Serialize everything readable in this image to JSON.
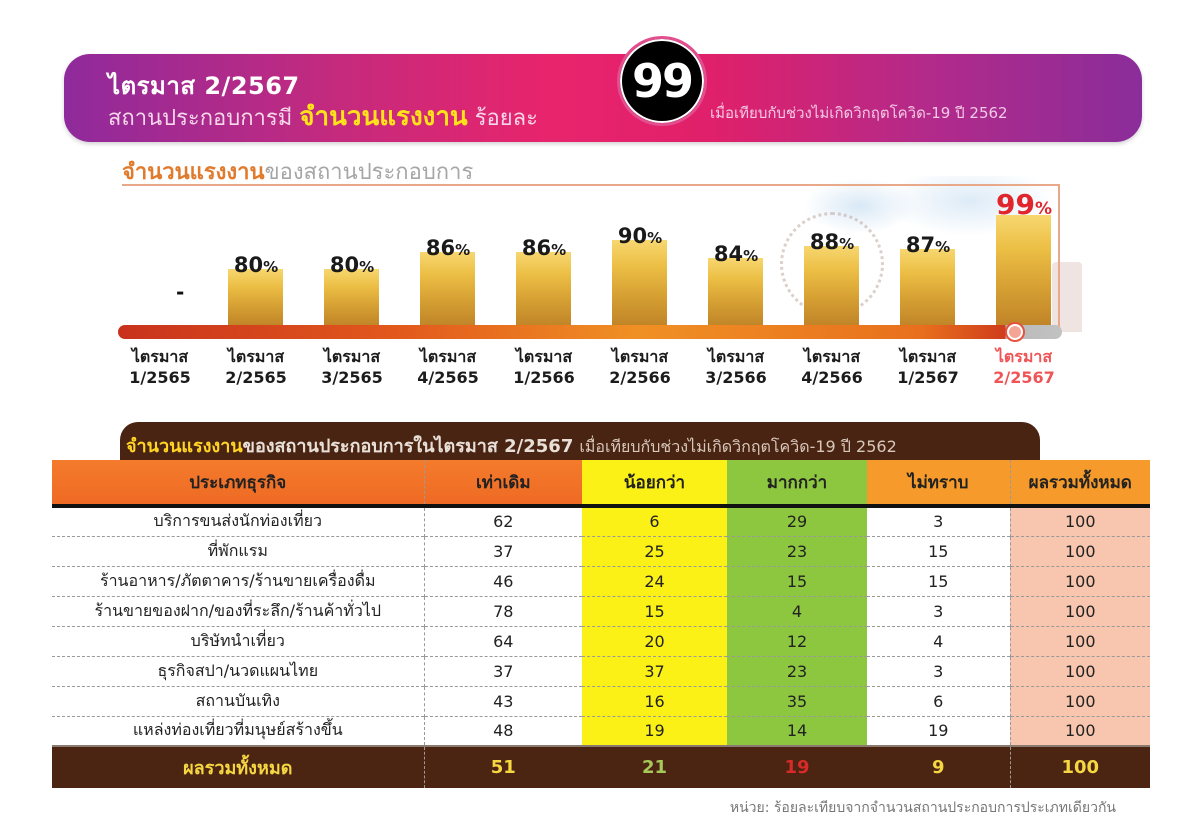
{
  "banner": {
    "line1": "ไตรมาส 2/2567",
    "line2_prefix": "สถานประกอบการมี ",
    "line2_highlight": "จำนวนแรงงาน",
    "line2_suffix": " ร้อยละ",
    "badge_value": "99",
    "note": "เมื่อเทียบกับช่วงไม่เกิดวิกฤตโควิด-19 ปี 2562"
  },
  "chart_section": {
    "title_highlight": "จำนวนแรงงาน",
    "title_rest": "ของสถานประกอบการ"
  },
  "chart_data": {
    "type": "bar",
    "title": "จำนวนแรงงานของสถานประกอบการ",
    "xlabel": "",
    "ylabel": "",
    "unit": "%",
    "categories": [
      "ไตรมาส 1/2565",
      "ไตรมาส 2/2565",
      "ไตรมาส 3/2565",
      "ไตรมาส 4/2565",
      "ไตรมาส 1/2566",
      "ไตรมาส 2/2566",
      "ไตรมาส 3/2566",
      "ไตรมาส 4/2566",
      "ไตรมาส 1/2567",
      "ไตรมาส 2/2567"
    ],
    "values": [
      null,
      80,
      80,
      86,
      86,
      90,
      84,
      88,
      87,
      99
    ],
    "value_labels": [
      "-",
      "80",
      "80",
      "86",
      "86",
      "90",
      "84",
      "88",
      "87",
      "99"
    ],
    "highlighted_category": "ไตรมาส 2/2567",
    "grid": false,
    "legend": null
  },
  "xaxis": [
    {
      "l1": "ไตรมาส",
      "l2": "1/2565"
    },
    {
      "l1": "ไตรมาส",
      "l2": "2/2565"
    },
    {
      "l1": "ไตรมาส",
      "l2": "3/2565"
    },
    {
      "l1": "ไตรมาส",
      "l2": "4/2565"
    },
    {
      "l1": "ไตรมาส",
      "l2": "1/2566"
    },
    {
      "l1": "ไตรมาส",
      "l2": "2/2566"
    },
    {
      "l1": "ไตรมาส",
      "l2": "3/2566"
    },
    {
      "l1": "ไตรมาส",
      "l2": "4/2566"
    },
    {
      "l1": "ไตรมาส",
      "l2": "1/2567"
    },
    {
      "l1": "ไตรมาส",
      "l2": "2/2567"
    }
  ],
  "table_section": {
    "title_highlight": "จำนวนแรงงาน",
    "title_rest": "ของสถานประกอบการในไตรมาส 2/2567",
    "title_note": "เมื่อเทียบกับช่วงไม่เกิดวิกฤตโควิด-19 ปี 2562",
    "headers": [
      "ประเภทธุรกิจ",
      "เท่าเดิม",
      "น้อยกว่า",
      "มากกว่า",
      "ไม่ทราบ",
      "ผลรวมทั้งหมด"
    ],
    "rows": [
      [
        "บริการขนส่งนักท่องเที่ยว",
        "62",
        "6",
        "29",
        "3",
        "100"
      ],
      [
        "ที่พักแรม",
        "37",
        "25",
        "23",
        "15",
        "100"
      ],
      [
        "ร้านอาหาร/ภัตตาคาร/ร้านขายเครื่องดื่ม",
        "46",
        "24",
        "15",
        "15",
        "100"
      ],
      [
        "ร้านขายของฝาก/ของที่ระลึก/ร้านค้าทั่วไป",
        "78",
        "15",
        "4",
        "3",
        "100"
      ],
      [
        "บริษัทนำเที่ยว",
        "64",
        "20",
        "12",
        "4",
        "100"
      ],
      [
        "ธุรกิจสปา/นวดแผนไทย",
        "37",
        "37",
        "23",
        "3",
        "100"
      ],
      [
        "สถานบันเทิง",
        "43",
        "16",
        "35",
        "6",
        "100"
      ],
      [
        "แหล่งท่องเที่ยวที่มนุษย์สร้างขึ้น",
        "48",
        "19",
        "14",
        "19",
        "100"
      ]
    ],
    "total": [
      "ผลรวมทั้งหมด",
      "51",
      "21",
      "19",
      "9",
      "100"
    ],
    "footnote": "หน่วย: ร้อยละเทียบจากจำนวนสถานประกอบการประเภทเดียวกัน"
  },
  "colors": {
    "banner_purple": "#8f2a9c",
    "banner_pink": "#e8246c",
    "highlight_yellow": "#ffe21a",
    "bar_gold": "#ecbf45",
    "highlight_red": "#e0262c",
    "header_orange": "#f47b2c",
    "less_yellow": "#fbf117",
    "more_green": "#8dc63f",
    "total_peach": "#f8c6ae",
    "dark_brown": "#4c2412"
  }
}
